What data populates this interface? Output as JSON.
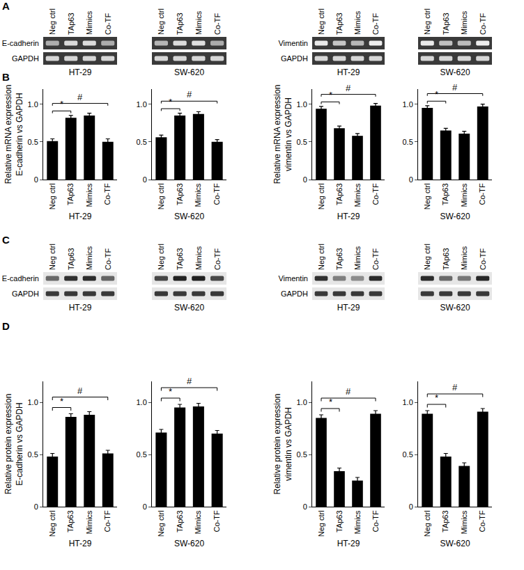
{
  "panel_labels": [
    "A",
    "B",
    "C",
    "D"
  ],
  "gels": [
    {
      "lanes": [
        "Neg ctrl",
        "TAp63",
        "Mimics",
        "Co-TF"
      ],
      "pairs": [
        {
          "rows": [
            "E-cadherin",
            "GAPDH"
          ],
          "cell_lines": [
            "HT-29",
            "SW-620"
          ]
        },
        {
          "rows": [
            "Vimentin",
            "GAPDH"
          ],
          "cell_lines": [
            "HT-29",
            "SW-620"
          ]
        }
      ]
    },
    {
      "lanes": [
        "Neg ctrl",
        "TAp63",
        "Mimics",
        "Co-TF"
      ],
      "pairs": [
        {
          "rows": [
            "E-cadherin",
            "GAPDH"
          ],
          "cell_lines": [
            "HT-29",
            "SW-620"
          ]
        },
        {
          "rows": [
            "Vimentin",
            "GAPDH"
          ],
          "cell_lines": [
            "HT-29",
            "SW-620"
          ]
        }
      ]
    }
  ],
  "chart_data": [
    {
      "type": "bar",
      "x_label": "HT-29",
      "y_label": [
        "Relative mRNA expression",
        "E-cadherin vs GAPDH"
      ],
      "categories": [
        "Neg ctrl",
        "TAp63",
        "Mimics",
        "Co-TF"
      ],
      "values": [
        0.51,
        0.82,
        0.85,
        0.5
      ],
      "errors": [
        0.03,
        0.03,
        0.03,
        0.04
      ],
      "color": "#000000",
      "ylim": [
        0,
        1.2
      ],
      "yticks": [
        0,
        0.5,
        {
          "value": 1,
          "label": "1.0"
        }
      ],
      "grid": false,
      "annotations": [
        {
          "text": "*",
          "from": "Neg ctrl",
          "to": "TAp63"
        },
        {
          "text": "#",
          "from": "Neg ctrl",
          "to": "Co-TF"
        }
      ]
    },
    {
      "type": "bar",
      "x_label": "SW-620",
      "categories": [
        "Neg ctrl",
        "TAp63",
        "Mimics",
        "Co-TF"
      ],
      "values": [
        0.56,
        0.85,
        0.87,
        0.5
      ],
      "errors": [
        0.03,
        0.03,
        0.03,
        0.03
      ],
      "color": "#000000",
      "ylim": [
        0,
        1.2
      ],
      "yticks": [
        0,
        0.5,
        {
          "value": 1,
          "label": "1.0"
        }
      ],
      "grid": false,
      "annotations": [
        {
          "text": "*",
          "from": "Neg ctrl",
          "to": "TAp63"
        },
        {
          "text": "#",
          "from": "Neg ctrl",
          "to": "Co-TF"
        }
      ]
    },
    {
      "type": "bar",
      "x_label": "HT-29",
      "y_label": [
        "Relative mRNA expression",
        "vimentin vs GAPDH"
      ],
      "categories": [
        "Neg ctrl",
        "TAp63",
        "Mimics",
        "Co-TF"
      ],
      "values": [
        0.94,
        0.68,
        0.58,
        0.98
      ],
      "errors": [
        0.03,
        0.03,
        0.03,
        0.03
      ],
      "color": "#000000",
      "ylim": [
        0,
        1.2
      ],
      "yticks": [
        0,
        0.5,
        {
          "value": 1,
          "label": "1.0"
        }
      ],
      "grid": false,
      "annotations": [
        {
          "text": "*",
          "from": "Neg ctrl",
          "to": "TAp63"
        },
        {
          "text": "#",
          "from": "Neg ctrl",
          "to": "Co-TF"
        }
      ]
    },
    {
      "type": "bar",
      "x_label": "SW-620",
      "categories": [
        "Neg ctrl",
        "TAp63",
        "Mimics",
        "Co-TF"
      ],
      "values": [
        0.95,
        0.65,
        0.61,
        0.97
      ],
      "errors": [
        0.03,
        0.03,
        0.03,
        0.03
      ],
      "color": "#000000",
      "ylim": [
        0,
        1.2
      ],
      "yticks": [
        0,
        0.5,
        {
          "value": 1,
          "label": "1.0"
        }
      ],
      "grid": false,
      "annotations": [
        {
          "text": "*",
          "from": "Neg ctrl",
          "to": "TAp63"
        },
        {
          "text": "#",
          "from": "Neg ctrl",
          "to": "Co-TF"
        }
      ]
    },
    {
      "type": "bar",
      "x_label": "HT-29",
      "y_label": [
        "Relative protein expression",
        "E-cadherin vs GAPDH"
      ],
      "categories": [
        "Neg ctrl",
        "TAp63",
        "Mimics",
        "Co-TF"
      ],
      "values": [
        0.48,
        0.86,
        0.88,
        0.51
      ],
      "errors": [
        0.03,
        0.03,
        0.03,
        0.03
      ],
      "color": "#000000",
      "ylim": [
        0,
        1.2
      ],
      "yticks": [
        0,
        0.5,
        {
          "value": 1,
          "label": "1.0"
        }
      ],
      "grid": false,
      "annotations": [
        {
          "text": "*",
          "from": "Neg ctrl",
          "to": "TAp63"
        },
        {
          "text": "#",
          "from": "Neg ctrl",
          "to": "Co-TF"
        }
      ]
    },
    {
      "type": "bar",
      "x_label": "SW-620",
      "categories": [
        "Neg ctrl",
        "TAp63",
        "Mimics",
        "Co-TF"
      ],
      "values": [
        0.71,
        0.95,
        0.96,
        0.7
      ],
      "errors": [
        0.03,
        0.03,
        0.03,
        0.03
      ],
      "color": "#000000",
      "ylim": [
        0,
        1.2
      ],
      "yticks": [
        0,
        0.5,
        {
          "value": 1,
          "label": "1.0"
        }
      ],
      "grid": false,
      "annotations": [
        {
          "text": "*",
          "from": "Neg ctrl",
          "to": "TAp63"
        },
        {
          "text": "#",
          "from": "Neg ctrl",
          "to": "Co-TF"
        }
      ]
    },
    {
      "type": "bar",
      "x_label": "HT-29",
      "y_label": [
        "Relative protein expression",
        "vimentin vs GAPDH"
      ],
      "categories": [
        "Neg ctrl",
        "TAp63",
        "Mimics",
        "Co-TF"
      ],
      "values": [
        0.85,
        0.34,
        0.25,
        0.89
      ],
      "errors": [
        0.03,
        0.03,
        0.03,
        0.03
      ],
      "color": "#000000",
      "ylim": [
        0,
        1.2
      ],
      "yticks": [
        0,
        0.5,
        {
          "value": 1,
          "label": "1.0"
        }
      ],
      "grid": false,
      "annotations": [
        {
          "text": "*",
          "from": "Neg ctrl",
          "to": "TAp63"
        },
        {
          "text": "#",
          "from": "Neg ctrl",
          "to": "Co-TF"
        }
      ]
    },
    {
      "type": "bar",
      "x_label": "SW-620",
      "categories": [
        "Neg ctrl",
        "TAp63",
        "Mimics",
        "Co-TF"
      ],
      "values": [
        0.89,
        0.48,
        0.39,
        0.91
      ],
      "errors": [
        0.03,
        0.03,
        0.03,
        0.03
      ],
      "color": "#000000",
      "ylim": [
        0,
        1.2
      ],
      "yticks": [
        0,
        0.5,
        {
          "value": 1,
          "label": "1.0"
        }
      ],
      "grid": false,
      "annotations": [
        {
          "text": "*",
          "from": "Neg ctrl",
          "to": "TAp63"
        },
        {
          "text": "#",
          "from": "Neg ctrl",
          "to": "Co-TF"
        }
      ]
    }
  ]
}
